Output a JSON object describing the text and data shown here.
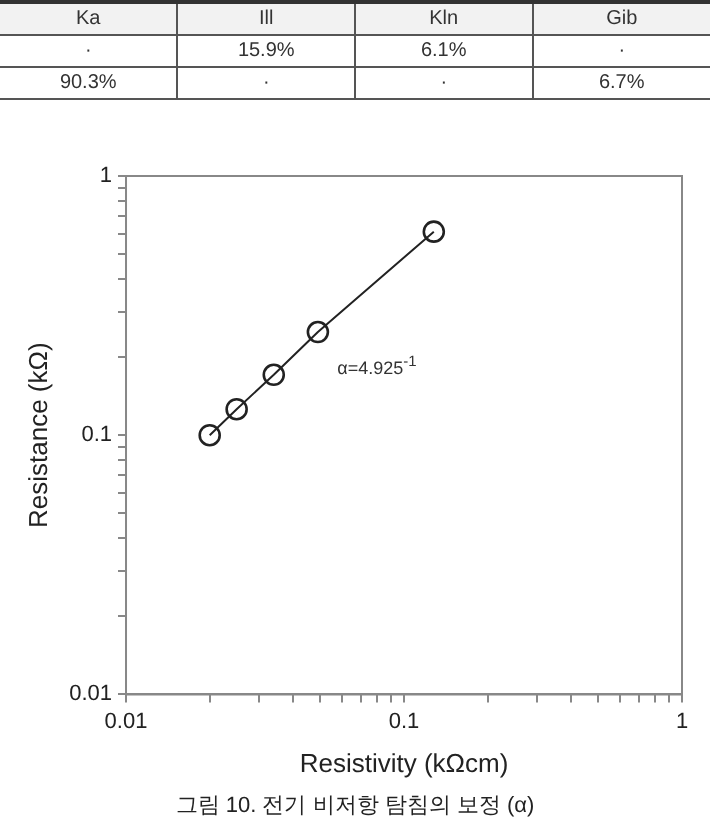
{
  "chart_data": [
    {
      "type": "other",
      "categories": [
        "Ka",
        "Ill",
        "Kln",
        "Gib"
      ],
      "annotations": [
        "·",
        "15.9%",
        "6.1%",
        "·",
        "90.3%",
        "·",
        "·",
        "6.7%"
      ]
    },
    {
      "type": "scatter",
      "xlabel": "Resistivity (kΩcm)",
      "ylabel": "Resistance (kΩ)",
      "x": [
        0.02,
        0.025,
        0.034,
        0.049,
        0.128
      ],
      "series": [
        {
          "type": "line",
          "color": "#222222",
          "values": [
            0.1,
            0.126,
            0.171,
            0.25,
            0.61
          ]
        }
      ],
      "log": "xy",
      "marker": "circle",
      "line_style": "solid",
      "grid": false,
      "xlim": [
        0.01,
        1
      ],
      "ylim": [
        0.01,
        1
      ],
      "xticks": [
        0.01,
        {
          "value": 0.02,
          "label": null
        },
        {
          "value": 0.03,
          "label": null
        },
        {
          "value": 0.04,
          "label": null
        },
        {
          "value": 0.05,
          "label": null
        },
        {
          "value": 0.06,
          "label": null
        },
        {
          "value": 0.07,
          "label": null
        },
        {
          "value": 0.08,
          "label": null
        },
        {
          "value": 0.09,
          "label": null
        },
        0.1,
        {
          "value": 0.2,
          "label": null
        },
        {
          "value": 0.3,
          "label": null
        },
        {
          "value": 0.4,
          "label": null
        },
        {
          "value": 0.5,
          "label": null
        },
        {
          "value": 0.6,
          "label": null
        },
        {
          "value": 0.7,
          "label": null
        },
        {
          "value": 0.8,
          "label": null
        },
        {
          "value": 0.9,
          "label": null
        },
        1
      ],
      "yticks": [
        0.01,
        {
          "value": 0.02,
          "label": null
        },
        {
          "value": 0.03,
          "label": null
        },
        {
          "value": 0.04,
          "label": null
        },
        {
          "value": 0.05,
          "label": null
        },
        {
          "value": 0.06,
          "label": null
        },
        {
          "value": 0.07,
          "label": null
        },
        {
          "value": 0.08,
          "label": null
        },
        {
          "value": 0.09,
          "label": null
        },
        0.1,
        {
          "value": 0.2,
          "label": null
        },
        {
          "value": 0.3,
          "label": null
        },
        {
          "value": 0.4,
          "label": null
        },
        {
          "value": 0.5,
          "label": null
        },
        {
          "value": 0.6,
          "label": null
        },
        {
          "value": 0.7,
          "label": null
        },
        {
          "value": 0.8,
          "label": null
        },
        {
          "value": 0.9,
          "label": null
        },
        1
      ],
      "annotations": [
        "α=4.925$^{-1}$",
        "그림 10. 전기 비저항 탐침의 보정 (α)"
      ]
    }
  ]
}
